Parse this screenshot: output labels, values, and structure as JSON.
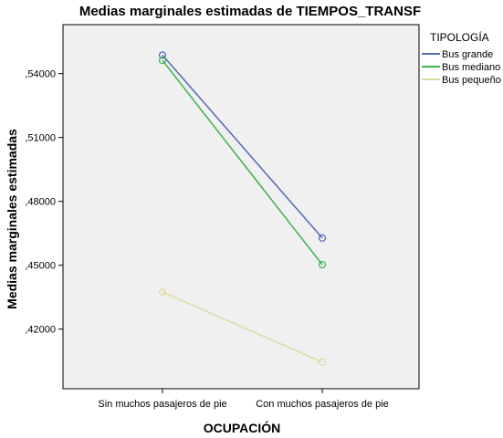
{
  "chart_data": {
    "type": "line",
    "title": "Medias marginales estimadas de TIEMPOS_TRANSF",
    "xlabel": "OCUPACIÓN",
    "ylabel": "Medias marginales estimadas",
    "categories": [
      "Sin muchos pasajeros de pie",
      "Con muchos pasajeros de pie"
    ],
    "yticks": [
      ",42000",
      ",45000",
      ",48000",
      ",51000",
      ",54000"
    ],
    "ytick_values": [
      0.42,
      0.45,
      0.48,
      0.51,
      0.54
    ],
    "ylim": [
      0.392,
      0.563
    ],
    "grid": false,
    "legend": {
      "title": "TIPOLOGÍA",
      "placement": "right"
    },
    "series": [
      {
        "name": "Bus grande",
        "values": [
          0.5487,
          0.4628
        ],
        "color": "#5569b5"
      },
      {
        "name": "Bus mediano",
        "values": [
          0.5462,
          0.4503
        ],
        "color": "#3db34a"
      },
      {
        "name": "Bus pequeño",
        "values": [
          0.4374,
          0.4045
        ],
        "color": "#dedaa6"
      }
    ],
    "plot_background": "#f0f0f0"
  }
}
